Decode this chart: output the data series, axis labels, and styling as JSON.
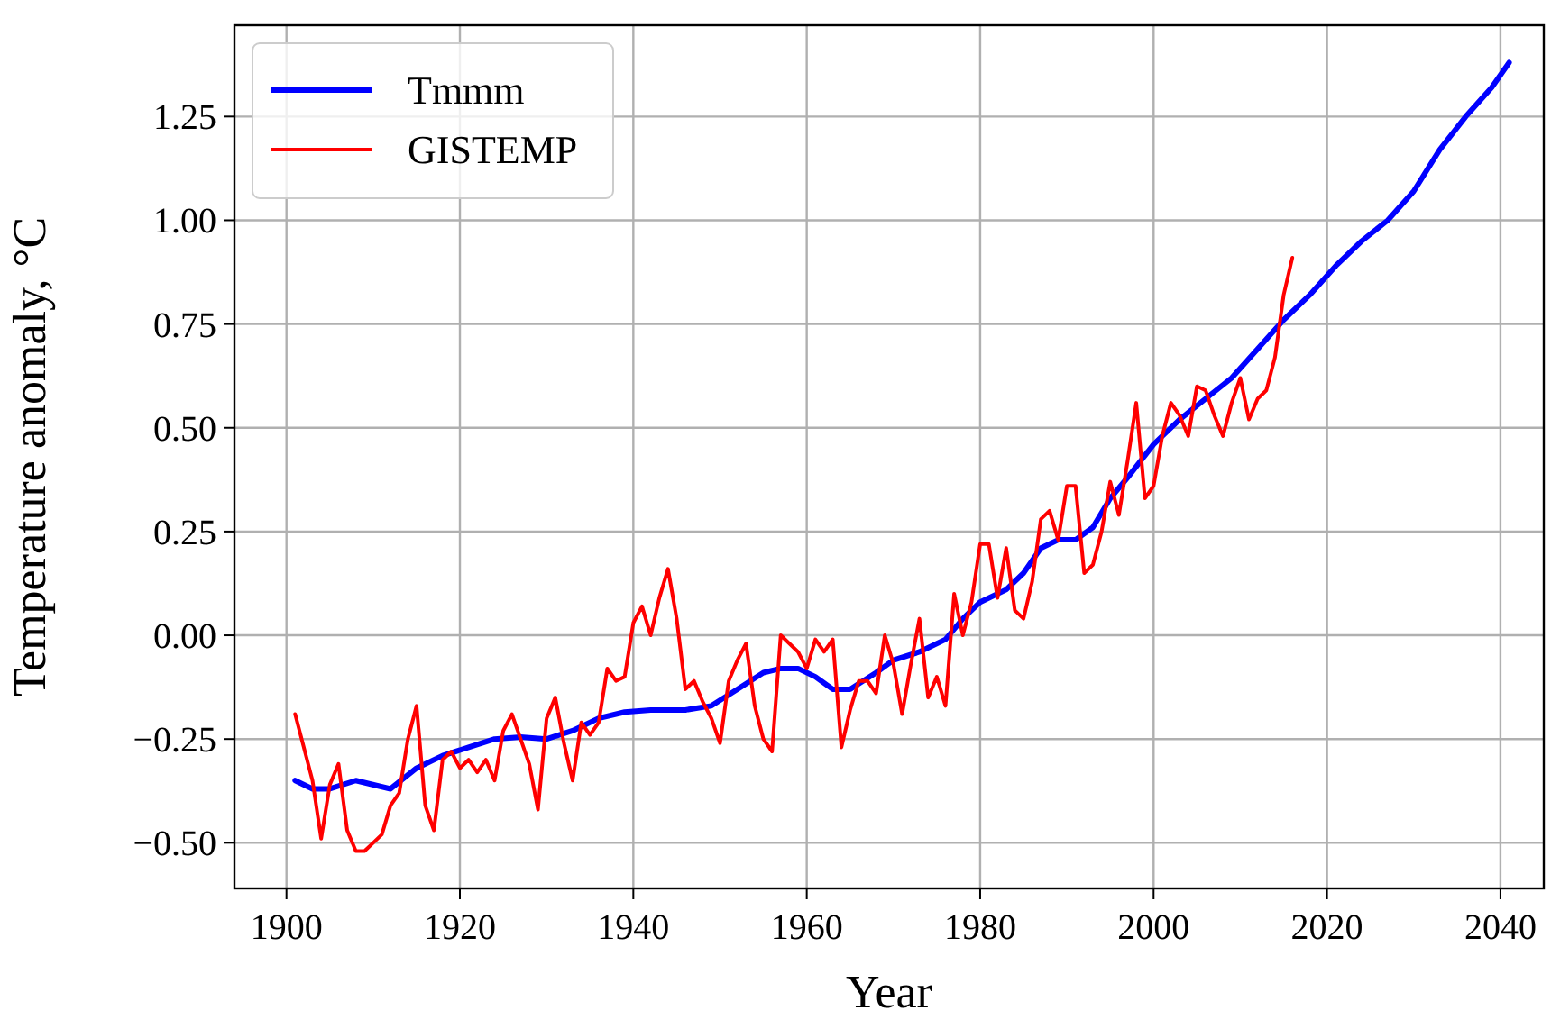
{
  "chart_data": {
    "type": "line",
    "xlabel": "Year",
    "ylabel": "Temperature anomaly, °C",
    "xlim": [
      1894,
      2045
    ],
    "ylim": [
      -0.61,
      1.47
    ],
    "xticks": [
      1900,
      1920,
      1940,
      1960,
      1980,
      2000,
      2020,
      2040
    ],
    "yticks": [
      {
        "value": -0.5,
        "label": "−0.50"
      },
      {
        "value": -0.25,
        "label": "−0.25"
      },
      {
        "value": 0,
        "label": "0.00"
      },
      {
        "value": 0.25,
        "label": "0.25"
      },
      {
        "value": 0.5,
        "label": "0.50"
      },
      {
        "value": 0.75,
        "label": "0.75"
      },
      {
        "value": 1,
        "label": "1.00"
      },
      {
        "value": 1.25,
        "label": "1.25"
      }
    ],
    "grid": true,
    "legend": "top left",
    "series": [
      {
        "name": "Tmmm",
        "color": "#0000ff",
        "x": [
          1901,
          1903,
          1905,
          1908,
          1912,
          1915,
          1918,
          1921,
          1924,
          1927,
          1930,
          1933,
          1936,
          1939,
          1942,
          1946,
          1949,
          1952,
          1955,
          1957,
          1959,
          1961,
          1963,
          1965,
          1968,
          1970,
          1973,
          1976,
          1978,
          1980,
          1983,
          1985,
          1987,
          1989,
          1991,
          1993,
          1995,
          1997,
          2000,
          2003,
          2006,
          2009,
          2012,
          2015,
          2018,
          2021,
          2024,
          2027,
          2030,
          2033,
          2036,
          2039,
          2041
        ],
        "values": [
          -0.35,
          -0.37,
          -0.37,
          -0.35,
          -0.37,
          -0.32,
          -0.29,
          -0.27,
          -0.25,
          -0.245,
          -0.25,
          -0.23,
          -0.2,
          -0.185,
          -0.18,
          -0.18,
          -0.17,
          -0.13,
          -0.09,
          -0.08,
          -0.08,
          -0.1,
          -0.13,
          -0.13,
          -0.09,
          -0.06,
          -0.04,
          -0.01,
          0.04,
          0.08,
          0.11,
          0.15,
          0.21,
          0.23,
          0.23,
          0.26,
          0.33,
          0.38,
          0.46,
          0.52,
          0.57,
          0.62,
          0.69,
          0.76,
          0.82,
          0.89,
          0.95,
          1.0,
          1.07,
          1.17,
          1.25,
          1.32,
          1.38
        ]
      },
      {
        "name": "GISTEMP",
        "color": "#ff0000",
        "x": [
          1901,
          1903,
          1904,
          1905,
          1906,
          1907,
          1908,
          1909,
          1910,
          1911,
          1912,
          1913,
          1914,
          1915,
          1916,
          1917,
          1918,
          1919,
          1920,
          1921,
          1922,
          1923,
          1924,
          1925,
          1926,
          1927,
          1928,
          1929,
          1930,
          1931,
          1932,
          1933,
          1934,
          1935,
          1936,
          1937,
          1938,
          1939,
          1940,
          1941,
          1942,
          1943,
          1944,
          1945,
          1946,
          1947,
          1948,
          1949,
          1950,
          1951,
          1952,
          1953,
          1954,
          1955,
          1956,
          1957,
          1958,
          1959,
          1960,
          1961,
          1962,
          1963,
          1964,
          1965,
          1966,
          1967,
          1968,
          1969,
          1970,
          1971,
          1972,
          1973,
          1974,
          1975,
          1976,
          1977,
          1978,
          1979,
          1980,
          1981,
          1982,
          1983,
          1984,
          1985,
          1986,
          1987,
          1988,
          1989,
          1990,
          1991,
          1992,
          1993,
          1994,
          1995,
          1996,
          1997,
          1998,
          1999,
          2000,
          2001,
          2002,
          2003,
          2004,
          2005,
          2006,
          2007,
          2008,
          2009,
          2010,
          2011,
          2012,
          2013,
          2014,
          2015,
          2016
        ],
        "values": [
          -0.19,
          -0.35,
          -0.49,
          -0.36,
          -0.31,
          -0.47,
          -0.52,
          -0.52,
          -0.5,
          -0.48,
          -0.41,
          -0.38,
          -0.25,
          -0.17,
          -0.41,
          -0.47,
          -0.3,
          -0.28,
          -0.32,
          -0.3,
          -0.33,
          -0.3,
          -0.35,
          -0.23,
          -0.19,
          -0.25,
          -0.31,
          -0.42,
          -0.2,
          -0.15,
          -0.26,
          -0.35,
          -0.21,
          -0.24,
          -0.21,
          -0.08,
          -0.11,
          -0.1,
          0.03,
          0.07,
          0.0,
          0.09,
          0.16,
          0.04,
          -0.13,
          -0.11,
          -0.16,
          -0.2,
          -0.26,
          -0.11,
          -0.06,
          -0.02,
          -0.17,
          -0.25,
          -0.28,
          0.0,
          -0.02,
          -0.04,
          -0.08,
          -0.01,
          -0.04,
          -0.01,
          -0.27,
          -0.18,
          -0.11,
          -0.11,
          -0.14,
          0.0,
          -0.07,
          -0.19,
          -0.07,
          0.04,
          -0.15,
          -0.1,
          -0.17,
          0.1,
          0.0,
          0.08,
          0.22,
          0.22,
          0.09,
          0.21,
          0.06,
          0.04,
          0.13,
          0.28,
          0.3,
          0.23,
          0.36,
          0.36,
          0.15,
          0.17,
          0.25,
          0.37,
          0.29,
          0.42,
          0.56,
          0.33,
          0.36,
          0.48,
          0.56,
          0.53,
          0.48,
          0.6,
          0.59,
          0.53,
          0.48,
          0.56,
          0.62,
          0.52,
          0.57,
          0.59,
          0.67,
          0.82,
          0.91
        ]
      }
    ]
  }
}
